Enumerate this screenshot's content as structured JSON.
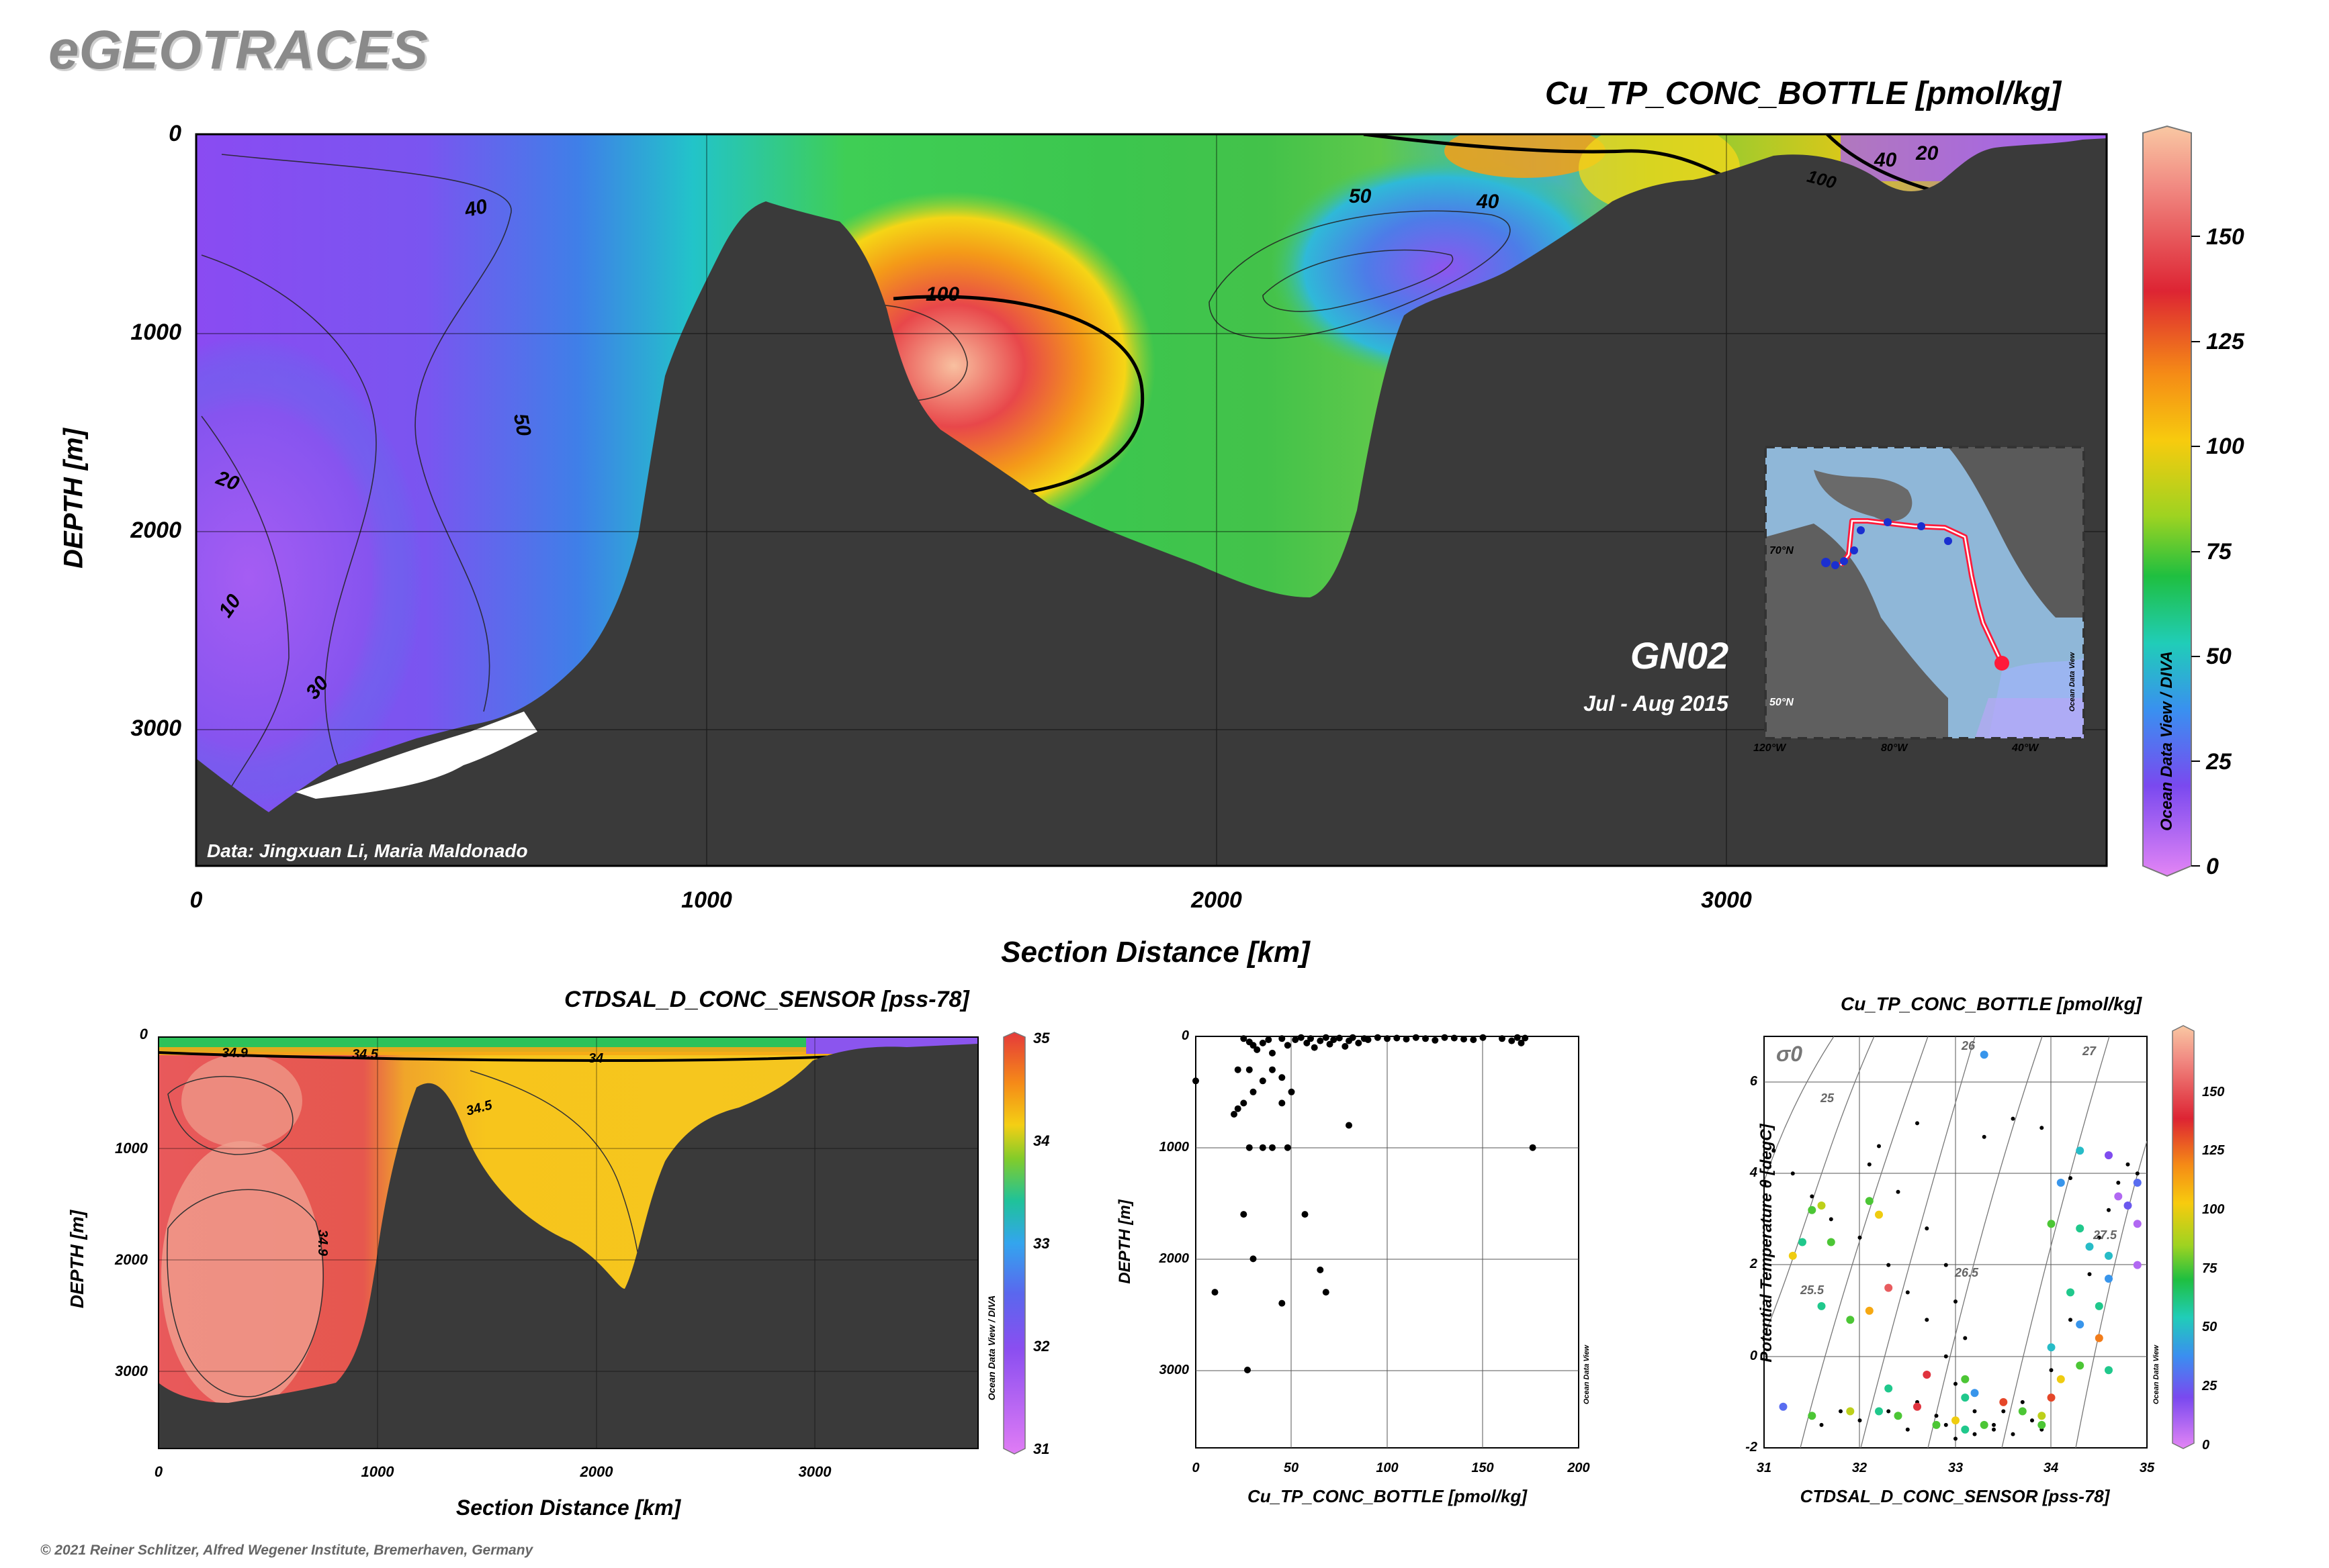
{
  "brand": "eGEOTRACES",
  "copyright": "© 2021 Reiner Schlitzer, Alfred Wegener Institute, Bremerhaven, Germany",
  "main_section": {
    "title": "Cu_TP_CONC_BOTTLE [pmol/kg]",
    "ylabel": "DEPTH [m]",
    "xlabel": "Section Distance [km]",
    "x_ticks": [
      "0",
      "1000",
      "2000",
      "3000"
    ],
    "y_ticks": [
      "0",
      "1000",
      "2000",
      "3000"
    ],
    "credit": "Data: Jingxuan Li, Maria Maldonado",
    "odv_label": "Ocean Data View / DIVA",
    "cruise": "GN02",
    "dates": "Jul - Aug 2015",
    "contour_labels": [
      "40",
      "50",
      "100",
      "20",
      "10",
      "30",
      "40",
      "50",
      "40",
      "20",
      "10",
      "100"
    ],
    "colorbar_ticks": [
      "150",
      "125",
      "100",
      "75",
      "50",
      "25",
      "0"
    ],
    "inset_map": {
      "lat_labels": [
        "70°N",
        "50°N"
      ],
      "lon_labels": [
        "120°W",
        "80°W",
        "40°W"
      ],
      "label": "Ocean Data View"
    }
  },
  "salinity_section": {
    "title": "CTDSAL_D_CONC_SENSOR [pss-78]",
    "ylabel": "DEPTH [m]",
    "xlabel": "Section Distance [km]",
    "x_ticks": [
      "0",
      "1000",
      "2000",
      "3000"
    ],
    "y_ticks": [
      "0",
      "1000",
      "2000",
      "3000"
    ],
    "contour_labels": [
      "34.9",
      "34.5",
      "34",
      "34.5",
      "34.9",
      "34.9"
    ],
    "colorbar_ticks": [
      "35",
      "34",
      "33",
      "32",
      "31"
    ],
    "odv_label": "Ocean Data View / DIVA"
  },
  "scatter_profile": {
    "ylabel": "DEPTH [m]",
    "xlabel": "Cu_TP_CONC_BOTTLE [pmol/kg]",
    "x_ticks": [
      "0",
      "50",
      "100",
      "150",
      "200"
    ],
    "y_ticks": [
      "0",
      "1000",
      "2000",
      "3000"
    ],
    "odv_label": "Ocean Data View"
  },
  "ts_diagram": {
    "title": "Cu_TP_CONC_BOTTLE [pmol/kg]",
    "ylabel": "Potential Temperature θ [degC]",
    "xlabel": "CTDSAL_D_CONC_SENSOR [pss-78]",
    "x_ticks": [
      "31",
      "32",
      "33",
      "34",
      "35"
    ],
    "y_ticks": [
      "6",
      "4",
      "2",
      "0",
      "-2"
    ],
    "sigma_label": "σ0",
    "isopycnal_labels": [
      "25",
      "26",
      "27",
      "25.5",
      "26.5",
      "27.5"
    ],
    "colorbar_ticks": [
      "150",
      "125",
      "100",
      "75",
      "50",
      "25",
      "0"
    ],
    "odv_label": "Ocean Data View"
  },
  "chart_data": [
    {
      "type": "scatter",
      "title": "",
      "xlabel": "Cu_TP_CONC_BOTTLE [pmol/kg]",
      "ylabel": "DEPTH [m]",
      "xlim": [
        0,
        200
      ],
      "ylim": [
        3700,
        0
      ],
      "points": [
        [
          0,
          400
        ],
        [
          25,
          20
        ],
        [
          28,
          50
        ],
        [
          30,
          80
        ],
        [
          32,
          120
        ],
        [
          35,
          60
        ],
        [
          38,
          30
        ],
        [
          40,
          150
        ],
        [
          45,
          20
        ],
        [
          48,
          80
        ],
        [
          52,
          30
        ],
        [
          55,
          10
        ],
        [
          58,
          60
        ],
        [
          60,
          20
        ],
        [
          62,
          100
        ],
        [
          65,
          40
        ],
        [
          68,
          10
        ],
        [
          70,
          70
        ],
        [
          72,
          30
        ],
        [
          75,
          15
        ],
        [
          78,
          90
        ],
        [
          80,
          40
        ],
        [
          82,
          10
        ],
        [
          85,
          60
        ],
        [
          88,
          20
        ],
        [
          90,
          30
        ],
        [
          95,
          10
        ],
        [
          100,
          20
        ],
        [
          105,
          15
        ],
        [
          110,
          25
        ],
        [
          115,
          10
        ],
        [
          120,
          20
        ],
        [
          125,
          35
        ],
        [
          130,
          10
        ],
        [
          135,
          15
        ],
        [
          140,
          25
        ],
        [
          145,
          30
        ],
        [
          150,
          10
        ],
        [
          160,
          20
        ],
        [
          165,
          40
        ],
        [
          168,
          10
        ],
        [
          170,
          60
        ],
        [
          172,
          15
        ],
        [
          22,
          300
        ],
        [
          28,
          300
        ],
        [
          40,
          300
        ],
        [
          45,
          370
        ],
        [
          35,
          400
        ],
        [
          30,
          500
        ],
        [
          20,
          700
        ],
        [
          22,
          650
        ],
        [
          25,
          600
        ],
        [
          45,
          600
        ],
        [
          50,
          500
        ],
        [
          80,
          800
        ],
        [
          28,
          1000
        ],
        [
          35,
          1000
        ],
        [
          40,
          1000
        ],
        [
          48,
          1000
        ],
        [
          176,
          1000
        ],
        [
          25,
          1600
        ],
        [
          57,
          1600
        ],
        [
          30,
          2000
        ],
        [
          65,
          2100
        ],
        [
          68,
          2300
        ],
        [
          10,
          2300
        ],
        [
          45,
          2400
        ],
        [
          27,
          3000
        ]
      ]
    },
    {
      "type": "scatter",
      "title": "Cu_TP_CONC_BOTTLE [pmol/kg]",
      "xlabel": "CTDSAL_D_CONC_SENSOR [pss-78]",
      "ylabel": "Potential Temperature θ [degC]",
      "xlim": [
        31,
        35
      ],
      "ylim": [
        -2,
        7
      ],
      "colored_points": [
        [
          31.2,
          -1.1,
          30
        ],
        [
          31.5,
          -1.3,
          75
        ],
        [
          31.9,
          -1.2,
          90
        ],
        [
          32.2,
          -1.2,
          60
        ],
        [
          32.4,
          -1.3,
          75
        ],
        [
          32.6,
          -1.1,
          140
        ],
        [
          32.8,
          -1.5,
          75
        ],
        [
          33.0,
          -1.4,
          100
        ],
        [
          33.1,
          -1.6,
          60
        ],
        [
          33.3,
          -1.5,
          75
        ],
        [
          33.5,
          -1.0,
          130
        ],
        [
          33.7,
          -1.2,
          75
        ],
        [
          33.9,
          -1.3,
          90
        ],
        [
          32.7,
          -0.4,
          140
        ],
        [
          33.1,
          -0.5,
          75
        ],
        [
          33.2,
          -0.8,
          40
        ],
        [
          32.3,
          -0.7,
          60
        ],
        [
          31.6,
          3.3,
          90
        ],
        [
          31.5,
          3.2,
          75
        ],
        [
          31.4,
          2.5,
          60
        ],
        [
          31.3,
          2.2,
          100
        ],
        [
          31.7,
          2.5,
          75
        ],
        [
          32.1,
          3.4,
          75
        ],
        [
          32.2,
          3.1,
          100
        ],
        [
          32.3,
          1.5,
          150
        ],
        [
          32.1,
          1.0,
          110
        ],
        [
          31.9,
          0.8,
          75
        ],
        [
          31.6,
          1.1,
          60
        ],
        [
          33.1,
          -0.9,
          60
        ],
        [
          33.3,
          6.6,
          40
        ],
        [
          34.3,
          4.5,
          50
        ],
        [
          34.1,
          3.8,
          40
        ],
        [
          34.6,
          4.4,
          20
        ],
        [
          34.9,
          3.8,
          30
        ],
        [
          34.8,
          3.3,
          25
        ],
        [
          34.7,
          3.5,
          10
        ],
        [
          34.6,
          2.2,
          50
        ],
        [
          34.6,
          1.7,
          40
        ],
        [
          34.5,
          1.1,
          60
        ],
        [
          34.3,
          0.7,
          40
        ],
        [
          34.5,
          0.4,
          120
        ],
        [
          34.6,
          -0.3,
          60
        ],
        [
          34.3,
          -0.2,
          75
        ],
        [
          34.1,
          -0.5,
          100
        ],
        [
          34.0,
          -0.9,
          130
        ],
        [
          33.9,
          -1.5,
          75
        ],
        [
          34.0,
          0.2,
          50
        ],
        [
          34.2,
          1.4,
          60
        ],
        [
          34.3,
          2.8,
          60
        ],
        [
          34.0,
          2.9,
          75
        ],
        [
          34.9,
          2.9,
          10
        ],
        [
          34.9,
          2.0,
          10
        ],
        [
          34.4,
          2.4,
          50
        ]
      ],
      "black_points": [
        [
          31.1,
          4.5
        ],
        [
          31.3,
          4.0
        ],
        [
          31.5,
          3.5
        ],
        [
          31.7,
          3.0
        ],
        [
          32.0,
          2.6
        ],
        [
          32.3,
          2.0
        ],
        [
          32.5,
          1.4
        ],
        [
          32.7,
          0.8
        ],
        [
          32.9,
          0.0
        ],
        [
          33.0,
          -0.6
        ],
        [
          33.2,
          -1.2
        ],
        [
          33.4,
          -1.5
        ],
        [
          33.6,
          -1.7
        ],
        [
          33.8,
          -1.4
        ],
        [
          32.1,
          4.2
        ],
        [
          32.4,
          3.6
        ],
        [
          32.7,
          2.8
        ],
        [
          32.9,
          2.0
        ],
        [
          33.0,
          1.2
        ],
        [
          33.1,
          0.4
        ],
        [
          32.8,
          -1.3
        ],
        [
          32.0,
          -1.4
        ],
        [
          31.6,
          -1.5
        ],
        [
          32.5,
          -1.6
        ],
        [
          33.0,
          -1.8
        ],
        [
          33.4,
          -1.6
        ],
        [
          33.7,
          -1.0
        ],
        [
          34.0,
          -0.3
        ],
        [
          34.2,
          0.8
        ],
        [
          34.4,
          1.8
        ],
        [
          34.5,
          2.6
        ],
        [
          34.6,
          3.2
        ],
        [
          34.7,
          3.8
        ],
        [
          34.8,
          4.2
        ],
        [
          34.9,
          4.0
        ],
        [
          33.3,
          4.8
        ],
        [
          33.6,
          5.2
        ],
        [
          32.2,
          4.6
        ],
        [
          32.6,
          5.1
        ],
        [
          33.9,
          5.0
        ],
        [
          34.2,
          3.9
        ],
        [
          33.5,
          -1.2
        ],
        [
          32.3,
          -1.2
        ],
        [
          32.9,
          -1.5
        ],
        [
          33.2,
          -1.7
        ],
        [
          31.8,
          -1.2
        ],
        [
          32.6,
          -1.0
        ],
        [
          33.9,
          -1.6
        ]
      ],
      "color_scale": [
        0,
        175
      ]
    }
  ]
}
